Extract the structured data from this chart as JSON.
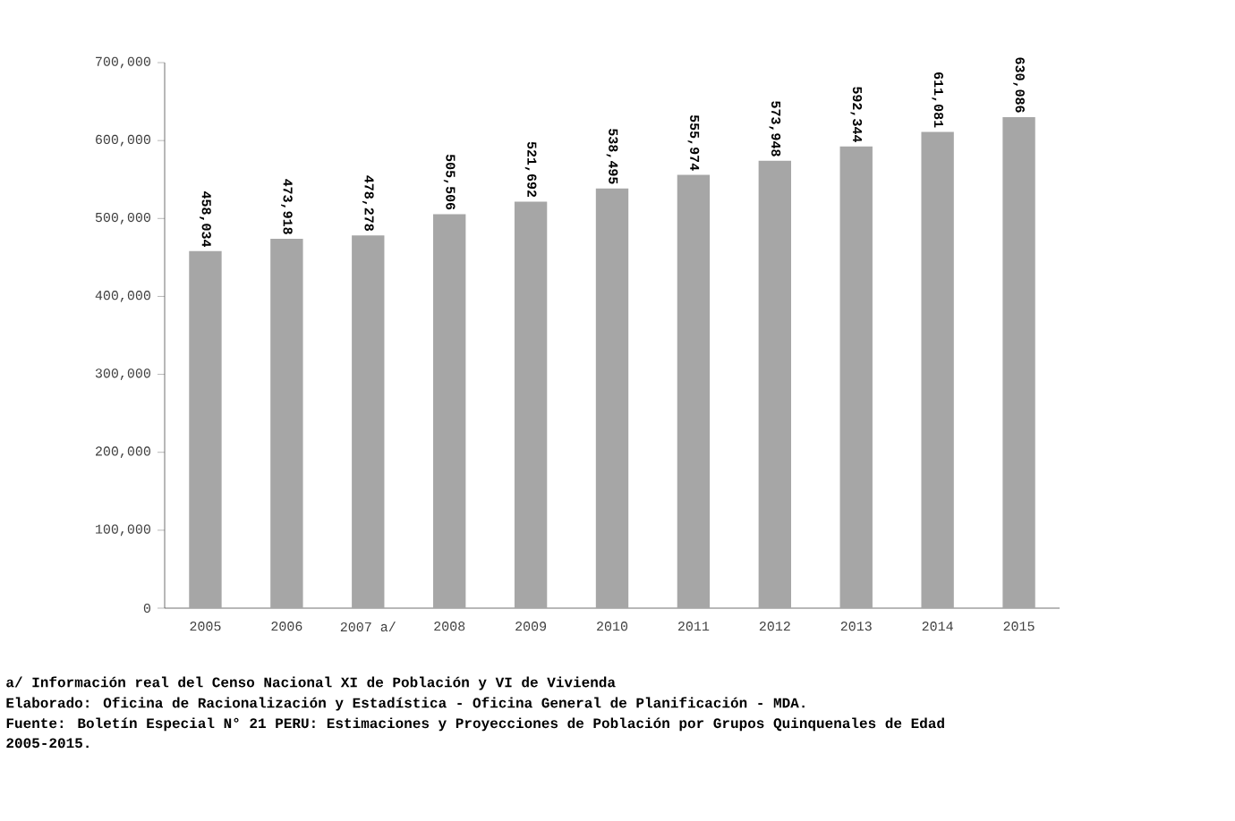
{
  "chart_data": {
    "type": "bar",
    "categories": [
      "2005",
      "2006",
      "2007 a/",
      "2008",
      "2009",
      "2010",
      "2011",
      "2012",
      "2013",
      "2014",
      "2015"
    ],
    "values": [
      458034,
      473918,
      478278,
      505506,
      521692,
      538495,
      555974,
      573948,
      592344,
      611081,
      630086
    ],
    "value_labels": [
      "458,034",
      "473,918",
      "478,278",
      "505,506",
      "521,692",
      "538,495",
      "555,974",
      "573,948",
      "592,344",
      "611,081",
      "630,086"
    ],
    "color": "#a6a6a6",
    "ylim": [
      0,
      700000
    ],
    "yticks": [
      0,
      {
        "value": 100000,
        "label": "100,000"
      },
      {
        "value": 200000,
        "label": "200,000"
      },
      {
        "value": 300000,
        "label": "300,000"
      },
      {
        "value": 400000,
        "label": "400,000"
      },
      {
        "value": 500000,
        "label": "500,000"
      },
      {
        "value": 600000,
        "label": "600,000"
      },
      {
        "value": 700000,
        "label": "700,000"
      }
    ],
    "grid": false,
    "annotations": [
      "a/ Información real del Censo Nacional XI de Población y VI de Vivienda",
      "Elaborado: Oficina de Racionalización y Estadística - Oficina General de Planificación - MDA.",
      "Fuente: Boletín Especial N° 21 PERU: Estimaciones y Proyecciones de Población por Grupos Quinquenales de Edad",
      "2005-2015."
    ]
  }
}
